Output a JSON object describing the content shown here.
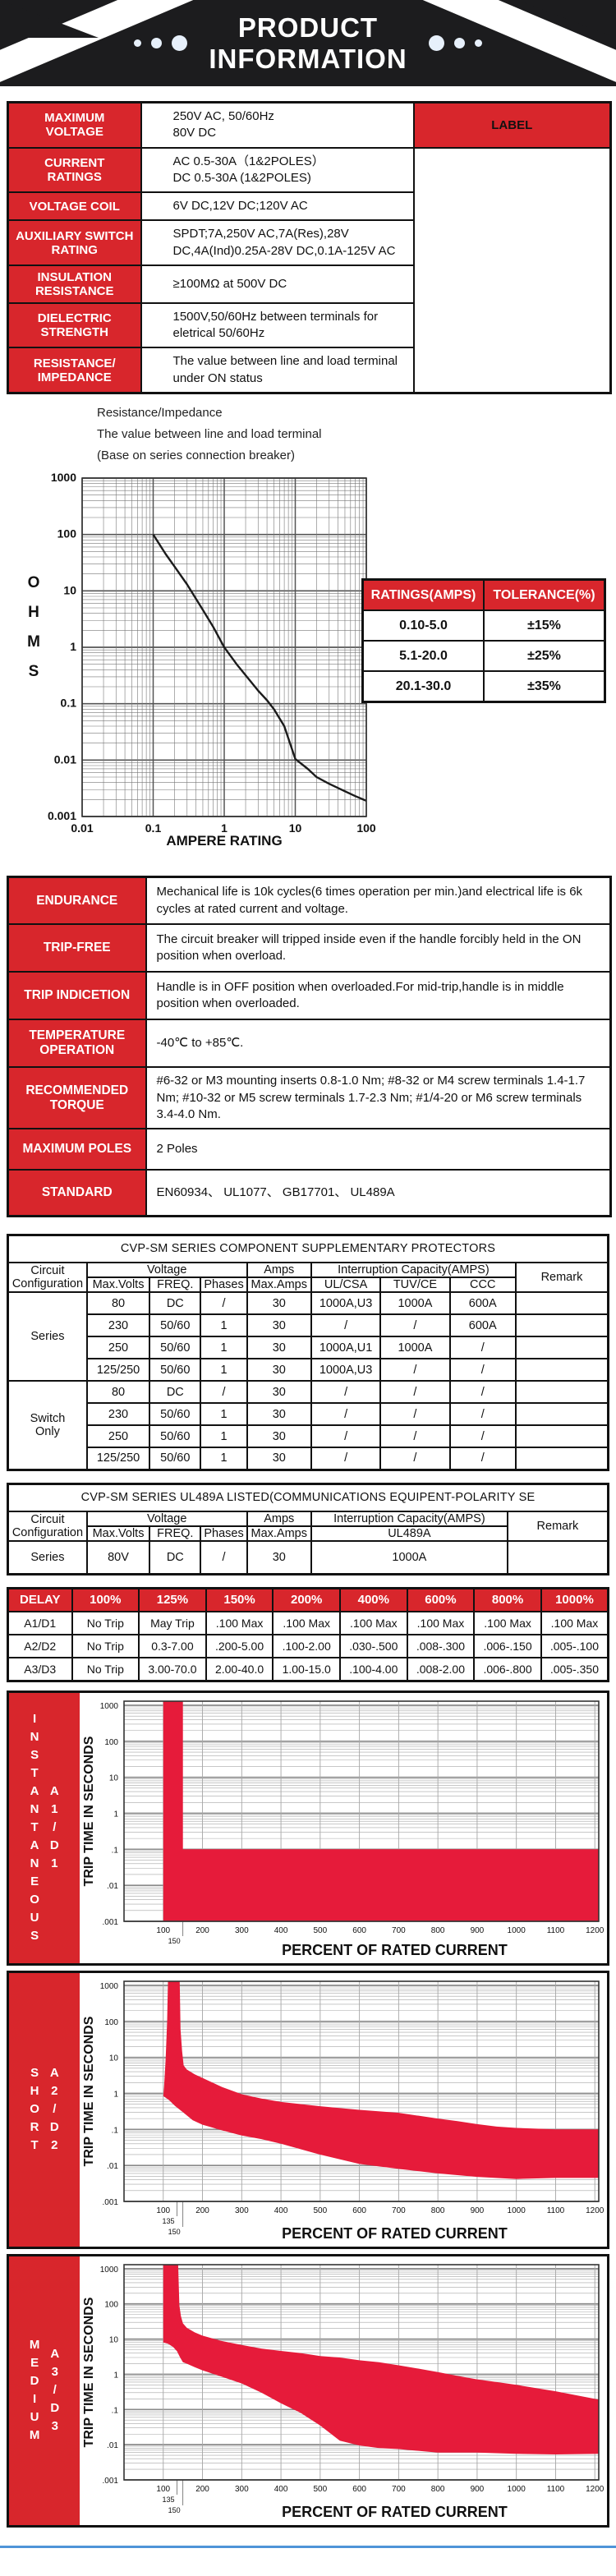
{
  "colors": {
    "red": "#d8262c",
    "chart_red": "#e61b3a",
    "banner_black": "#1c1c1e",
    "blue_line": "#4f94d8"
  },
  "header": {
    "title_line1": "PRODUCT",
    "title_line2": "INFORMATION"
  },
  "spec_table": {
    "label_header": "LABEL",
    "rows": [
      {
        "label": "MAXIMUM\nVOLTAGE",
        "value": "250V AC,  50/60Hz\n80V DC"
      },
      {
        "label": "CURRENT\nRATINGS",
        "value": "AC 0.5-30A（1&2POLES）\nDC 0.5-30A (1&2POLES)"
      },
      {
        "label": "VOLTAGE COIL",
        "value": "6V DC,12V DC;120V AC"
      },
      {
        "label": "AUXILIARY SWITCH\nRATING",
        "value": "SPDT;7A,250V AC,7A(Res),28V\nDC,4A(Ind)0.25A-28V DC,0.1A-125V AC"
      },
      {
        "label": "INSULATION\nRESISTANCE",
        "value": "≥100MΩ at 500V DC"
      },
      {
        "label": "DIELECTRIC\nSTRENGTH",
        "value": "1500V,50/60Hz between terminals for\neletrical 50/60Hz"
      },
      {
        "label": "RESISTANCE/\nIMPEDANCE",
        "value": "The value between line and load terminal\nunder ON status"
      }
    ]
  },
  "notes": {
    "line1": "Resistance/Impedance",
    "line2": "The value between line and load terminal",
    "line3": "(Base on series connection breaker)"
  },
  "tolerance_table": {
    "headers": [
      "RATINGS(AMPS)",
      "TOLERANCE(%)"
    ],
    "rows": [
      [
        "0.10-5.0",
        "±15%"
      ],
      [
        "5.1-20.0",
        "±25%"
      ],
      [
        "20.1-30.0",
        "±35%"
      ]
    ]
  },
  "endurance_table": {
    "rows": [
      {
        "label": "ENDURANCE",
        "value": "Mechanical life is 10k cycles(6 times operation per min.)and electrical life is 6k cycles at rated current and voltage."
      },
      {
        "label": "TRIP-FREE",
        "value": "The circuit breaker will tripped inside even if the handle forcibly held in the ON position when overload."
      },
      {
        "label": "TRIP INDICETION",
        "value": "Handle is in OFF position when overloaded.For mid-trip,handle is in middle position when overloaded."
      },
      {
        "label": "TEMPERATURE\nOPERATION",
        "value": "-40℃ to +85℃."
      },
      {
        "label": "RECOMMENDED\nTORQUE",
        "value": "#6-32 or M3 mounting inserts 0.8-1.0 Nm; #8-32 or M4 screw terminals 1.4-1.7 Nm; #10-32 or M5 screw terminals 1.7-2.3 Nm; #1/4-20 or M6 screw terminals 3.4-4.0 Nm."
      },
      {
        "label": "MAXIMUM POLES",
        "value": "2 Poles"
      },
      {
        "label": "STANDARD",
        "value": "EN60934、 UL1077、 GB17701、 UL489A"
      }
    ]
  },
  "protectors_table": {
    "title": "CVP-SM SERIES COMPONENT SUPPLEMENTARY PROTECTORS",
    "group_headers": {
      "config": "Circuit\nConfiguration",
      "voltage": "Voltage",
      "amps": "Amps",
      "interruption": "Interruption Capacity(AMPS)",
      "remark": "Remark"
    },
    "sub_headers": [
      "Max.Volts",
      "FREQ.",
      "Phases",
      "Max.Amps",
      "UL/CSA",
      "TUV/CE",
      "CCC"
    ],
    "groups": [
      {
        "name": "Series",
        "rows": [
          [
            "80",
            "DC",
            "/",
            "30",
            "1000A,U3",
            "1000A",
            "600A",
            ""
          ],
          [
            "230",
            "50/60",
            "1",
            "30",
            "/",
            "/",
            "600A",
            ""
          ],
          [
            "250",
            "50/60",
            "1",
            "30",
            "1000A,U1",
            "1000A",
            "/",
            ""
          ],
          [
            "125/250",
            "50/60",
            "1",
            "30",
            "1000A,U3",
            "/",
            "/",
            ""
          ]
        ]
      },
      {
        "name": "Switch\nOnly",
        "rows": [
          [
            "80",
            "DC",
            "/",
            "30",
            "/",
            "/",
            "/",
            ""
          ],
          [
            "230",
            "50/60",
            "1",
            "30",
            "/",
            "/",
            "/",
            ""
          ],
          [
            "250",
            "50/60",
            "1",
            "30",
            "/",
            "/",
            "/",
            ""
          ],
          [
            "125/250",
            "50/60",
            "1",
            "30",
            "/",
            "/",
            "/",
            ""
          ]
        ]
      }
    ]
  },
  "ul489a_table": {
    "title": "CVP-SM SERIES UL489A LISTED(COMMUNICATIONS EQUIPENT-POLARITY SE",
    "group_headers": {
      "config": "Circuit\nConfiguration",
      "voltage": "Voltage",
      "amps": "Amps",
      "interruption": "Interruption Capacity(AMPS)",
      "remark": "Remark"
    },
    "sub_headers": [
      "Max.Volts",
      "FREQ.",
      "Phases",
      "Max.Amps",
      "UL489A"
    ],
    "row": [
      "Series",
      "80V",
      "DC",
      "/",
      "30",
      "1000A",
      ""
    ]
  },
  "delay_table": {
    "headers": [
      "DELAY",
      "100%",
      "125%",
      "150%",
      "200%",
      "400%",
      "600%",
      "800%",
      "1000%"
    ],
    "rows": [
      [
        "A1/D1",
        "No Trip",
        "May Trip",
        ".100 Max",
        ".100 Max",
        ".100 Max",
        ".100 Max",
        ".100 Max",
        ".100 Max"
      ],
      [
        "A2/D2",
        "No Trip",
        "0.3-7.00",
        ".200-5.00",
        ".100-2.00",
        ".030-.500",
        ".008-.300",
        ".006-.150",
        ".005-.100"
      ],
      [
        "A3/D3",
        "No Trip",
        "3.00-70.0",
        "2.00-40.0",
        "1.00-15.0",
        ".100-4.00",
        ".008-2.00",
        ".006-.800",
        ".005-.350"
      ]
    ]
  },
  "chart_data": [
    {
      "type": "line",
      "id": "ohms",
      "title": "Resistance/Impedance vs Ampere Rating",
      "xlabel": "AMPERE RATING",
      "ylabel": "OHMS",
      "xscale": "log",
      "yscale": "log",
      "xlim": [
        0.01,
        100
      ],
      "ylim": [
        0.001,
        1000
      ],
      "x_tick_labels": {
        "-2": "0.01",
        "-1": "0.1",
        "0": "1",
        "1": "10",
        "2": "100"
      },
      "y_tick_labels": {
        "3": "1000",
        "2": "100",
        "1": "10",
        "0": "1",
        "-1": "0.1",
        "-2": "0.01",
        "-3": "0.001"
      },
      "grid": "on",
      "series": [
        {
          "name": "resistance-ohms",
          "points": [
            [
              0.1,
              100
            ],
            [
              0.15,
              45
            ],
            [
              0.2,
              27
            ],
            [
              0.3,
              13
            ],
            [
              0.5,
              4.6
            ],
            [
              0.7,
              2.3
            ],
            [
              1,
              1
            ],
            [
              1.5,
              0.5
            ],
            [
              2,
              0.32
            ],
            [
              3,
              0.17
            ],
            [
              4,
              0.115
            ],
            [
              5,
              0.08
            ],
            [
              7,
              0.04
            ],
            [
              10,
              0.0105
            ],
            [
              15,
              0.007
            ],
            [
              20,
              0.005
            ],
            [
              30,
              0.0038
            ],
            [
              50,
              0.0028
            ],
            [
              70,
              0.0023
            ],
            [
              100,
              0.0019
            ]
          ]
        }
      ]
    },
    {
      "type": "area",
      "id": "trip1",
      "side_label": "INSTANTANEOUS",
      "code_label": "A1/D1",
      "xlabel": "PERCENT OF RATED CURRENT",
      "ylabel": "TRIP TIME IN SECONDS",
      "xscale": "linear",
      "yscale": "log",
      "xlim": [
        0,
        1210
      ],
      "ylim": [
        0.001,
        1300
      ],
      "x_major": [
        100,
        1200,
        100
      ],
      "x_sub": [
        150
      ],
      "y_tick_labels": {
        "3": "1000",
        "2": "100",
        "1": "10",
        "0": "1",
        "-1": ".1",
        "-2": ".01",
        "-3": ".001"
      },
      "grid": "on",
      "legend": "none",
      "region": [
        [
          100,
          1300
        ],
        [
          150,
          1300
        ],
        [
          150,
          0.1
        ],
        [
          1210,
          0.1
        ],
        [
          1210,
          0.001
        ],
        [
          100,
          0.001
        ]
      ]
    },
    {
      "type": "area",
      "id": "trip2",
      "side_label": "SHORT",
      "code_label": "A2/D2",
      "xlabel": "PERCENT OF RATED CURRENT",
      "ylabel": "TRIP TIME IN SECONDS",
      "xscale": "linear",
      "yscale": "log",
      "xlim": [
        0,
        1210
      ],
      "ylim": [
        0.001,
        1300
      ],
      "x_major": [
        100,
        1200,
        100
      ],
      "x_sub": [
        135,
        150
      ],
      "y_tick_labels": {
        "3": "1000",
        "2": "100",
        "1": "10",
        "0": "1",
        "-1": ".1",
        "-2": ".01",
        "-3": ".001"
      },
      "grid": "on",
      "legend": "none",
      "region": [
        [
          112,
          1300
        ],
        [
          142,
          1300
        ],
        [
          144,
          60
        ],
        [
          148,
          15
        ],
        [
          152,
          6
        ],
        [
          160,
          4.6
        ],
        [
          180,
          3.4
        ],
        [
          200,
          2.7
        ],
        [
          250,
          1.5
        ],
        [
          300,
          0.95
        ],
        [
          350,
          0.72
        ],
        [
          400,
          0.58
        ],
        [
          500,
          0.44
        ],
        [
          600,
          0.35
        ],
        [
          700,
          0.29
        ],
        [
          800,
          0.2
        ],
        [
          850,
          0.17
        ],
        [
          900,
          0.14
        ],
        [
          950,
          0.12
        ],
        [
          1000,
          0.11
        ],
        [
          1100,
          0.1
        ],
        [
          1210,
          0.1
        ],
        [
          1210,
          0.0045
        ],
        [
          1100,
          0.0045
        ],
        [
          1000,
          0.0042
        ],
        [
          900,
          0.0048
        ],
        [
          800,
          0.006
        ],
        [
          700,
          0.008
        ],
        [
          600,
          0.011
        ],
        [
          500,
          0.02
        ],
        [
          400,
          0.04
        ],
        [
          350,
          0.054
        ],
        [
          300,
          0.068
        ],
        [
          250,
          0.094
        ],
        [
          200,
          0.135
        ],
        [
          175,
          0.18
        ],
        [
          150,
          0.3
        ],
        [
          130,
          0.45
        ],
        [
          115,
          0.65
        ],
        [
          100,
          0.85
        ],
        [
          102,
          1.5
        ],
        [
          106,
          8
        ],
        [
          110,
          100
        ],
        [
          112,
          1300
        ]
      ]
    },
    {
      "type": "area",
      "id": "trip3",
      "side_label": "MEDIUM",
      "code_label": "A3/D3",
      "xlabel": "PERCENT OF RATED CURRENT",
      "ylabel": "TRIP TIME IN SECONDS",
      "xscale": "linear",
      "yscale": "log",
      "xlim": [
        0,
        1210
      ],
      "ylim": [
        0.001,
        1300
      ],
      "x_major": [
        100,
        1200,
        100
      ],
      "x_sub": [
        135,
        150
      ],
      "y_tick_labels": {
        "3": "1000",
        "2": "100",
        "1": "10",
        "0": "1",
        "-1": ".1",
        "-2": ".01",
        "-3": ".001"
      },
      "grid": "on",
      "legend": "none",
      "region": [
        [
          100,
          1300
        ],
        [
          138,
          1300
        ],
        [
          141,
          90
        ],
        [
          145,
          45
        ],
        [
          150,
          28
        ],
        [
          160,
          21
        ],
        [
          180,
          15.5
        ],
        [
          200,
          12.5
        ],
        [
          250,
          8.8
        ],
        [
          300,
          6.8
        ],
        [
          350,
          5.4
        ],
        [
          400,
          4.6
        ],
        [
          450,
          4.0
        ],
        [
          500,
          3.3
        ],
        [
          550,
          3.0
        ],
        [
          600,
          2.5
        ],
        [
          650,
          2.2
        ],
        [
          700,
          1.8
        ],
        [
          750,
          1.45
        ],
        [
          800,
          1.15
        ],
        [
          850,
          0.9
        ],
        [
          900,
          0.72
        ],
        [
          950,
          0.6
        ],
        [
          1000,
          0.5
        ],
        [
          1100,
          0.33
        ],
        [
          1210,
          0.19
        ],
        [
          1210,
          0.0055
        ],
        [
          1100,
          0.0053
        ],
        [
          1000,
          0.0055
        ],
        [
          900,
          0.006
        ],
        [
          800,
          0.006
        ],
        [
          700,
          0.0075
        ],
        [
          650,
          0.008
        ],
        [
          600,
          0.0095
        ],
        [
          550,
          0.013
        ],
        [
          500,
          0.035
        ],
        [
          450,
          0.08
        ],
        [
          400,
          0.15
        ],
        [
          350,
          0.3
        ],
        [
          300,
          0.55
        ],
        [
          250,
          0.85
        ],
        [
          200,
          1.3
        ],
        [
          180,
          1.6
        ],
        [
          160,
          2.0
        ],
        [
          150,
          2.2
        ],
        [
          143,
          3
        ],
        [
          135,
          4.5
        ],
        [
          125,
          6
        ],
        [
          112,
          7.4
        ],
        [
          100,
          8
        ]
      ]
    }
  ]
}
